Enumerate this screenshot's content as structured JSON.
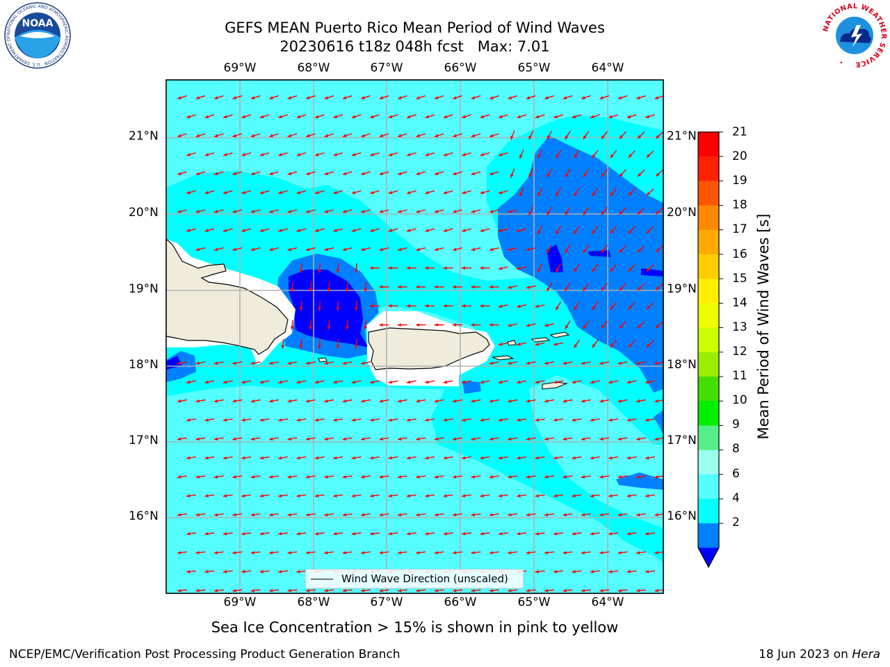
{
  "title": {
    "line1": "GEFS MEAN Puerto Rico Mean Period of Wind Waves",
    "line2": "20230616 t18z 048h fcst   Max: 7.01"
  },
  "map": {
    "lon_labels": [
      "69°W",
      "68°W",
      "67°W",
      "66°W",
      "65°W",
      "64°W"
    ],
    "lat_labels": [
      "21°N",
      "20°N",
      "19°N",
      "18°N",
      "17°N",
      "16°N"
    ],
    "land_color": "#efecdc",
    "vector_color": "#ff0000",
    "gridline_color": "#b0b0b0"
  },
  "colorbar": {
    "label": "Mean Period of Wind Waves [s]",
    "ticks": [
      "21",
      "20",
      "19",
      "18",
      "17",
      "16",
      "15",
      "14",
      "13",
      "12",
      "11",
      "10",
      "9",
      "8",
      "6",
      "4",
      "2"
    ],
    "colors": [
      "#ff0000",
      "#ff2200",
      "#ff5500",
      "#ff8800",
      "#ffaa00",
      "#ffcc00",
      "#ffee00",
      "#eeff00",
      "#ccff00",
      "#99ee00",
      "#44dd00",
      "#00ee00",
      "#55ee88",
      "#99ffee",
      "#55ffff",
      "#00ffff",
      "#0080ff",
      "#0000ff"
    ]
  },
  "legend": {
    "label": "Wind Wave Direction (unscaled)"
  },
  "seaice_note": "Sea Ice Concentration > 15% is shown in pink to yellow",
  "footer": {
    "left": "NCEP/EMC/Verification Post Processing Product Generation Branch",
    "right_date": "18 Jun 2023 on ",
    "right_machine": "Hera"
  },
  "logos": {
    "noaa": {
      "text": "NOAA",
      "ring_text": "NATIONAL OCEANIC AND ATMOSPHERIC ADMINISTRATION · U.S. DEPARTMENT OF COMMERCE"
    },
    "nws": {
      "ring_text": "NATIONAL WEATHER SERVICE"
    }
  }
}
